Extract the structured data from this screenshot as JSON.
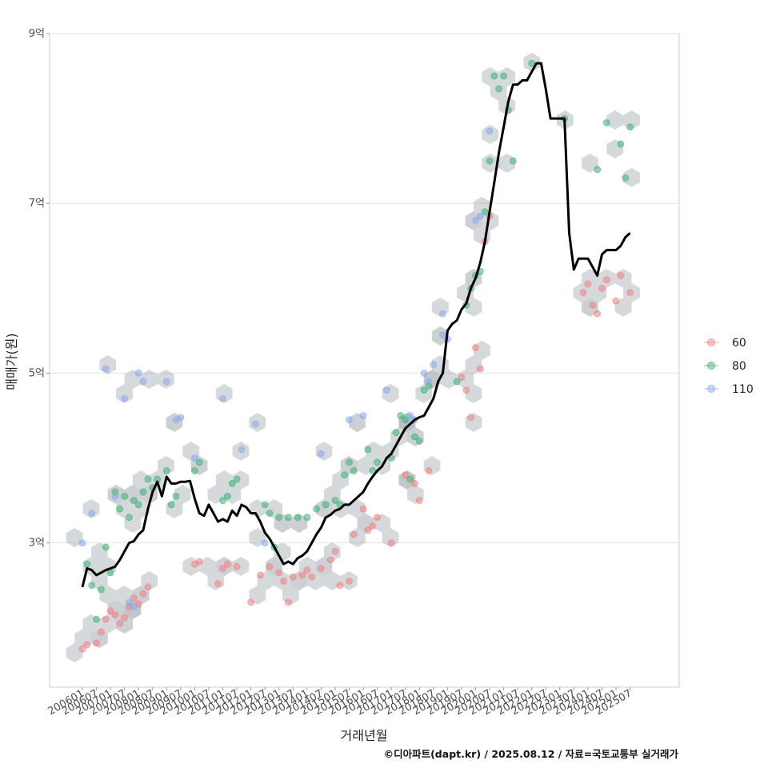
{
  "chart_data": {
    "type": "line",
    "xlabel": "거래년월",
    "ylabel": "매매가(원)",
    "caption": "©디아파트(dapt.kr) / 2025.08.12 / 자료=국토교통부 실거래가",
    "y_ticks": [
      {
        "value": 3,
        "label": "3억"
      },
      {
        "value": 5,
        "label": "5억"
      },
      {
        "value": 7,
        "label": "7억"
      },
      {
        "value": 9,
        "label": "9억"
      }
    ],
    "ylim": [
      1.3,
      9
    ],
    "xlim": [
      "2004-11",
      "2027-04"
    ],
    "x_ticks": [
      "200601",
      "200607",
      "200701",
      "200707",
      "200801",
      "200807",
      "200901",
      "200907",
      "201001",
      "201007",
      "201101",
      "201107",
      "201201",
      "201207",
      "201301",
      "201307",
      "201401",
      "201407",
      "201501",
      "201507",
      "201601",
      "201607",
      "201701",
      "201707",
      "201801",
      "201807",
      "201901",
      "201907",
      "202001",
      "202007",
      "202101",
      "202107",
      "202201",
      "202207",
      "202301",
      "202307",
      "202401",
      "202407",
      "202501",
      "202507"
    ],
    "grid": true,
    "legend_position": "right",
    "legend": [
      {
        "label": "60",
        "color": "#f08080"
      },
      {
        "label": "80",
        "color": "#3cb371"
      },
      {
        "label": "110",
        "color": "#87a8f0"
      }
    ],
    "series": [
      {
        "color": "#000000",
        "points": [
          [
            "2006-01",
            2.48
          ],
          [
            "2006-03",
            2.7
          ],
          [
            "2006-05",
            2.68
          ],
          [
            "2006-07",
            2.62
          ],
          [
            "2006-09",
            2.65
          ],
          [
            "2006-11",
            2.68
          ],
          [
            "2007-01",
            2.7
          ],
          [
            "2007-03",
            2.72
          ],
          [
            "2007-05",
            2.8
          ],
          [
            "2007-07",
            2.9
          ],
          [
            "2007-09",
            3.0
          ],
          [
            "2007-11",
            3.02
          ],
          [
            "2008-01",
            3.1
          ],
          [
            "2008-03",
            3.15
          ],
          [
            "2008-05",
            3.4
          ],
          [
            "2008-07",
            3.6
          ],
          [
            "2008-09",
            3.72
          ],
          [
            "2008-11",
            3.55
          ],
          [
            "2009-01",
            3.78
          ],
          [
            "2009-03",
            3.7
          ],
          [
            "2009-05",
            3.7
          ],
          [
            "2009-07",
            3.72
          ],
          [
            "2009-09",
            3.72
          ],
          [
            "2009-11",
            3.73
          ],
          [
            "2010-01",
            3.52
          ],
          [
            "2010-03",
            3.35
          ],
          [
            "2010-05",
            3.32
          ],
          [
            "2010-07",
            3.45
          ],
          [
            "2010-09",
            3.35
          ],
          [
            "2010-11",
            3.25
          ],
          [
            "2011-01",
            3.28
          ],
          [
            "2011-03",
            3.25
          ],
          [
            "2011-05",
            3.38
          ],
          [
            "2011-07",
            3.32
          ],
          [
            "2011-09",
            3.45
          ],
          [
            "2011-11",
            3.42
          ],
          [
            "2012-01",
            3.35
          ],
          [
            "2012-03",
            3.35
          ],
          [
            "2012-05",
            3.25
          ],
          [
            "2012-07",
            3.12
          ],
          [
            "2012-09",
            3.05
          ],
          [
            "2012-11",
            2.95
          ],
          [
            "2013-01",
            2.85
          ],
          [
            "2013-03",
            2.75
          ],
          [
            "2013-05",
            2.78
          ],
          [
            "2013-07",
            2.75
          ],
          [
            "2013-09",
            2.82
          ],
          [
            "2013-11",
            2.85
          ],
          [
            "2014-01",
            2.9
          ],
          [
            "2014-03",
            3.0
          ],
          [
            "2014-05",
            3.1
          ],
          [
            "2014-07",
            3.18
          ],
          [
            "2014-09",
            3.3
          ],
          [
            "2014-11",
            3.33
          ],
          [
            "2015-01",
            3.38
          ],
          [
            "2015-03",
            3.4
          ],
          [
            "2015-05",
            3.45
          ],
          [
            "2015-07",
            3.45
          ],
          [
            "2015-09",
            3.5
          ],
          [
            "2015-11",
            3.55
          ],
          [
            "2016-01",
            3.6
          ],
          [
            "2016-03",
            3.7
          ],
          [
            "2016-05",
            3.78
          ],
          [
            "2016-07",
            3.85
          ],
          [
            "2016-09",
            3.9
          ],
          [
            "2016-11",
            4.0
          ],
          [
            "2017-01",
            4.05
          ],
          [
            "2017-03",
            4.15
          ],
          [
            "2017-05",
            4.25
          ],
          [
            "2017-07",
            4.35
          ],
          [
            "2017-09",
            4.4
          ],
          [
            "2017-11",
            4.45
          ],
          [
            "2018-01",
            4.48
          ],
          [
            "2018-03",
            4.5
          ],
          [
            "2018-05",
            4.6
          ],
          [
            "2018-07",
            4.7
          ],
          [
            "2018-09",
            4.9
          ],
          [
            "2018-11",
            5.0
          ],
          [
            "2019-01",
            5.5
          ],
          [
            "2019-03",
            5.58
          ],
          [
            "2019-05",
            5.62
          ],
          [
            "2019-07",
            5.75
          ],
          [
            "2019-09",
            5.82
          ],
          [
            "2019-11",
            6.0
          ],
          [
            "2020-01",
            6.12
          ],
          [
            "2020-03",
            6.3
          ],
          [
            "2020-05",
            6.55
          ],
          [
            "2020-07",
            6.9
          ],
          [
            "2020-09",
            7.25
          ],
          [
            "2020-11",
            7.6
          ],
          [
            "2021-01",
            7.9
          ],
          [
            "2021-03",
            8.2
          ],
          [
            "2021-05",
            8.4
          ],
          [
            "2021-07",
            8.4
          ],
          [
            "2021-09",
            8.45
          ],
          [
            "2021-11",
            8.45
          ],
          [
            "2022-01",
            8.55
          ],
          [
            "2022-03",
            8.65
          ],
          [
            "2022-05",
            8.65
          ],
          [
            "2022-07",
            8.35
          ],
          [
            "2022-09",
            8.0
          ],
          [
            "2022-11",
            8.0
          ],
          [
            "2023-01",
            8.0
          ],
          [
            "2023-03",
            8.0
          ],
          [
            "2023-05",
            6.65
          ],
          [
            "2023-07",
            6.22
          ],
          [
            "2023-09",
            6.35
          ],
          [
            "2023-11",
            6.35
          ],
          [
            "2024-01",
            6.35
          ],
          [
            "2024-03",
            6.25
          ],
          [
            "2024-05",
            6.15
          ],
          [
            "2024-07",
            6.4
          ],
          [
            "2024-09",
            6.45
          ],
          [
            "2024-11",
            6.45
          ],
          [
            "2025-01",
            6.45
          ],
          [
            "2025-03",
            6.5
          ],
          [
            "2025-05",
            6.6
          ],
          [
            "2025-07",
            6.65
          ]
        ]
      }
    ],
    "scatter": [
      {
        "group": "60",
        "points": [
          [
            "2006-01",
            1.75
          ],
          [
            "2006-03",
            1.8
          ],
          [
            "2006-07",
            1.82
          ],
          [
            "2006-09",
            1.95
          ],
          [
            "2006-11",
            2.1
          ],
          [
            "2007-01",
            2.2
          ],
          [
            "2007-03",
            2.15
          ],
          [
            "2007-05",
            2.05
          ],
          [
            "2007-07",
            2.12
          ],
          [
            "2007-09",
            2.25
          ],
          [
            "2007-11",
            2.35
          ],
          [
            "2008-01",
            2.28
          ],
          [
            "2008-03",
            2.4
          ],
          [
            "2008-05",
            2.48
          ],
          [
            "2010-01",
            2.75
          ],
          [
            "2010-03",
            2.78
          ],
          [
            "2010-11",
            2.52
          ],
          [
            "2011-01",
            2.7
          ],
          [
            "2011-03",
            2.75
          ],
          [
            "2011-07",
            2.72
          ],
          [
            "2012-01",
            2.3
          ],
          [
            "2012-05",
            2.62
          ],
          [
            "2012-09",
            2.72
          ],
          [
            "2013-01",
            2.65
          ],
          [
            "2013-03",
            2.55
          ],
          [
            "2013-05",
            2.3
          ],
          [
            "2013-07",
            2.6
          ],
          [
            "2013-11",
            2.62
          ],
          [
            "2014-01",
            2.68
          ],
          [
            "2014-03",
            2.6
          ],
          [
            "2014-07",
            2.7
          ],
          [
            "2014-11",
            2.8
          ],
          [
            "2015-01",
            2.9
          ],
          [
            "2015-03",
            2.5
          ],
          [
            "2015-07",
            2.55
          ],
          [
            "2015-09",
            3.1
          ],
          [
            "2016-01",
            3.4
          ],
          [
            "2016-03",
            3.15
          ],
          [
            "2016-05",
            3.2
          ],
          [
            "2016-07",
            3.3
          ],
          [
            "2017-01",
            3.0
          ],
          [
            "2017-07",
            3.8
          ],
          [
            "2017-11",
            3.7
          ],
          [
            "2018-01",
            3.5
          ],
          [
            "2018-05",
            3.85
          ],
          [
            "2019-07",
            4.95
          ],
          [
            "2019-09",
            4.8
          ],
          [
            "2019-11",
            4.48
          ],
          [
            "2020-01",
            5.3
          ],
          [
            "2020-03",
            5.05
          ],
          [
            "2020-05",
            6.55
          ],
          [
            "2020-07",
            6.85
          ],
          [
            "2023-11",
            5.95
          ],
          [
            "2024-01",
            6.05
          ],
          [
            "2024-03",
            5.8
          ],
          [
            "2024-05",
            5.7
          ],
          [
            "2024-07",
            6.0
          ],
          [
            "2024-09",
            6.1
          ],
          [
            "2025-01",
            5.85
          ],
          [
            "2025-03",
            6.15
          ],
          [
            "2025-07",
            5.95
          ]
        ]
      },
      {
        "group": "80",
        "points": [
          [
            "2006-03",
            2.75
          ],
          [
            "2006-05",
            2.5
          ],
          [
            "2006-07",
            2.1
          ],
          [
            "2006-09",
            2.45
          ],
          [
            "2006-11",
            2.95
          ],
          [
            "2007-01",
            2.65
          ],
          [
            "2007-03",
            3.6
          ],
          [
            "2007-05",
            3.4
          ],
          [
            "2007-07",
            3.55
          ],
          [
            "2007-09",
            3.3
          ],
          [
            "2007-11",
            3.5
          ],
          [
            "2008-01",
            3.45
          ],
          [
            "2008-03",
            3.6
          ],
          [
            "2008-05",
            3.75
          ],
          [
            "2008-07",
            3.65
          ],
          [
            "2008-09",
            3.75
          ],
          [
            "2009-01",
            3.85
          ],
          [
            "2009-03",
            3.45
          ],
          [
            "2009-05",
            3.55
          ],
          [
            "2010-01",
            3.85
          ],
          [
            "2010-03",
            3.95
          ],
          [
            "2011-01",
            3.5
          ],
          [
            "2011-03",
            3.55
          ],
          [
            "2011-05",
            3.7
          ],
          [
            "2011-07",
            3.75
          ],
          [
            "2012-07",
            3.45
          ],
          [
            "2012-09",
            3.35
          ],
          [
            "2012-11",
            2.95
          ],
          [
            "2013-01",
            3.3
          ],
          [
            "2013-05",
            3.3
          ],
          [
            "2013-09",
            3.3
          ],
          [
            "2014-01",
            3.3
          ],
          [
            "2014-05",
            3.4
          ],
          [
            "2014-09",
            3.45
          ],
          [
            "2015-01",
            3.5
          ],
          [
            "2015-03",
            3.45
          ],
          [
            "2015-05",
            3.8
          ],
          [
            "2015-07",
            3.95
          ],
          [
            "2015-09",
            3.85
          ],
          [
            "2016-03",
            4.1
          ],
          [
            "2016-05",
            3.85
          ],
          [
            "2016-07",
            3.95
          ],
          [
            "2017-01",
            4.0
          ],
          [
            "2017-03",
            4.3
          ],
          [
            "2017-05",
            4.5
          ],
          [
            "2017-07",
            4.45
          ],
          [
            "2017-09",
            3.75
          ],
          [
            "2017-11",
            4.25
          ],
          [
            "2018-01",
            4.2
          ],
          [
            "2018-03",
            4.8
          ],
          [
            "2018-05",
            4.85
          ],
          [
            "2019-05",
            4.9
          ],
          [
            "2019-09",
            5.8
          ],
          [
            "2019-11",
            6.0
          ],
          [
            "2020-01",
            6.15
          ],
          [
            "2020-03",
            6.2
          ],
          [
            "2020-05",
            6.9
          ],
          [
            "2020-07",
            7.5
          ],
          [
            "2020-09",
            8.5
          ],
          [
            "2020-11",
            8.35
          ],
          [
            "2021-01",
            8.5
          ],
          [
            "2021-03",
            8.1
          ],
          [
            "2021-05",
            7.5
          ],
          [
            "2022-01",
            8.65
          ],
          [
            "2023-03",
            8.0
          ],
          [
            "2024-05",
            7.4
          ],
          [
            "2024-09",
            7.95
          ],
          [
            "2025-03",
            7.7
          ],
          [
            "2025-05",
            7.3
          ],
          [
            "2025-07",
            7.9
          ]
        ]
      },
      {
        "group": "110",
        "points": [
          [
            "2006-01",
            3.0
          ],
          [
            "2006-05",
            3.35
          ],
          [
            "2006-11",
            5.05
          ],
          [
            "2007-03",
            3.55
          ],
          [
            "2007-07",
            4.7
          ],
          [
            "2007-09",
            2.3
          ],
          [
            "2007-11",
            2.25
          ],
          [
            "2008-01",
            5.0
          ],
          [
            "2008-03",
            4.9
          ],
          [
            "2009-01",
            4.9
          ],
          [
            "2009-05",
            4.45
          ],
          [
            "2009-07",
            4.48
          ],
          [
            "2010-01",
            4.0
          ],
          [
            "2011-01",
            4.7
          ],
          [
            "2011-09",
            4.1
          ],
          [
            "2012-03",
            4.4
          ],
          [
            "2012-07",
            3.0
          ],
          [
            "2014-07",
            4.05
          ],
          [
            "2015-07",
            4.45
          ],
          [
            "2016-01",
            4.5
          ],
          [
            "2016-11",
            4.8
          ],
          [
            "2017-09",
            4.5
          ],
          [
            "2017-11",
            4.45
          ],
          [
            "2018-03",
            5.0
          ],
          [
            "2018-05",
            4.9
          ],
          [
            "2018-07",
            5.1
          ],
          [
            "2018-11",
            5.7
          ],
          [
            "2018-11",
            5.45
          ],
          [
            "2019-01",
            5.4
          ],
          [
            "2020-01",
            6.8
          ],
          [
            "2020-03",
            6.85
          ],
          [
            "2020-07",
            7.85
          ]
        ]
      }
    ]
  }
}
